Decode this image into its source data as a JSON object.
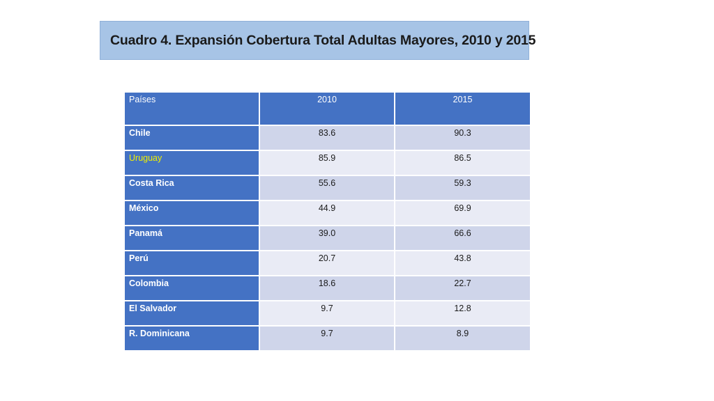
{
  "title": "Cuadro 4. Expansión Cobertura Total Adultas Mayores, 2010 y 2015",
  "table": {
    "headers": [
      "Países",
      "2010",
      "2015"
    ],
    "rows": [
      {
        "country": "Chile",
        "v2010": "83.6",
        "v2015": "90.3"
      },
      {
        "country": "Uruguay",
        "v2010": "85.9",
        "v2015": "86.5"
      },
      {
        "country": "Costa Rica",
        "v2010": "55.6",
        "v2015": "59.3"
      },
      {
        "country": "México",
        "v2010": "44.9",
        "v2015": "69.9"
      },
      {
        "country": "Panamá",
        "v2010": "39.0",
        "v2015": "66.6"
      },
      {
        "country": "Perú",
        "v2010": "20.7",
        "v2015": "43.8"
      },
      {
        "country": "Colombia",
        "v2010": "18.6",
        "v2015": "22.7"
      },
      {
        "country": "El Salvador",
        "v2010": " 9.7",
        "v2015": "12.8"
      },
      {
        "country": "R. Dominicana",
        "v2010": " 9.7",
        "v2015": " 8.9"
      }
    ]
  },
  "colors": {
    "header_bg": "#4472c4",
    "title_bg": "#a7c4e6",
    "row_odd": "#cfd5ea",
    "row_even": "#e9ebf5",
    "highlight_text": "#f0f000"
  }
}
